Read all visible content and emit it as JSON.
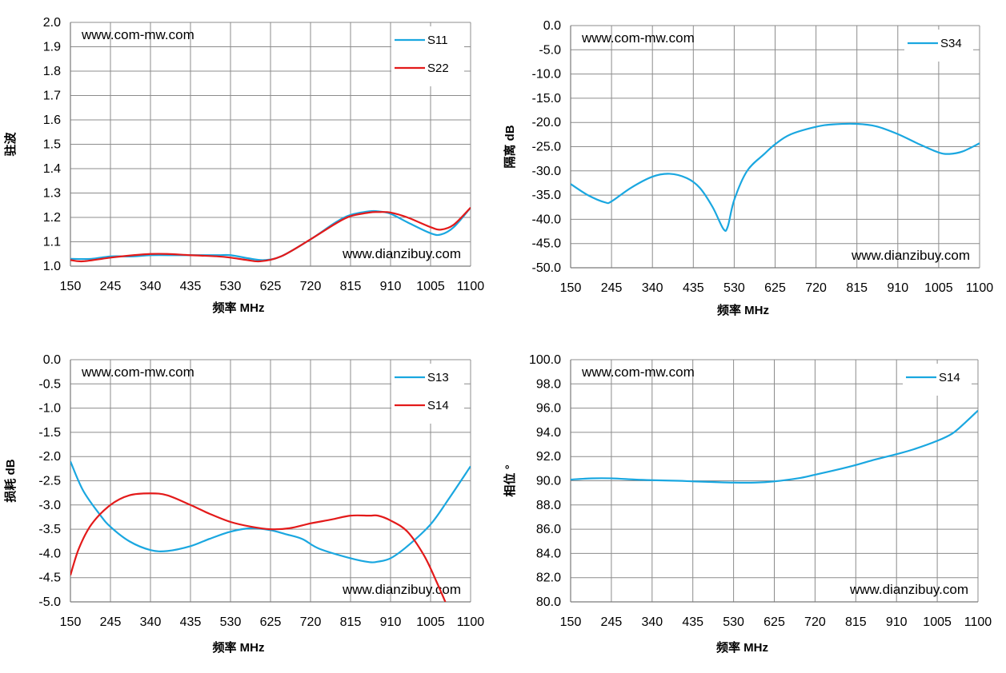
{
  "chart_data": [
    {
      "type": "line",
      "watermark_top": "www.com-mw.com",
      "watermark_bottom": "www.dianzibuy.com",
      "xlabel": "频率 MHz",
      "ylabel": "驻波",
      "xticks": [
        150,
        245,
        340,
        435,
        530,
        625,
        720,
        815,
        910,
        1005,
        1100
      ],
      "ylim": [
        1.0,
        2.0
      ],
      "ytick_step": 0.1,
      "ytick_decimals": 1,
      "grid": true,
      "legend_position": "top-right",
      "series": [
        {
          "name": "S11",
          "color": "#1aa7e0",
          "x": [
            150,
            200,
            245,
            300,
            340,
            400,
            435,
            500,
            530,
            580,
            610,
            650,
            720,
            780,
            815,
            860,
            880,
            910,
            950,
            1005,
            1030,
            1060,
            1100
          ],
          "y": [
            1.03,
            1.03,
            1.04,
            1.04,
            1.045,
            1.045,
            1.045,
            1.045,
            1.045,
            1.03,
            1.025,
            1.04,
            1.11,
            1.18,
            1.21,
            1.225,
            1.225,
            1.215,
            1.18,
            1.135,
            1.13,
            1.16,
            1.24
          ]
        },
        {
          "name": "S22",
          "color": "#e31a1a",
          "x": [
            150,
            180,
            245,
            300,
            340,
            380,
            435,
            500,
            530,
            570,
            600,
            650,
            720,
            780,
            815,
            860,
            880,
            910,
            950,
            1005,
            1030,
            1060,
            1100
          ],
          "y": [
            1.025,
            1.02,
            1.035,
            1.045,
            1.05,
            1.05,
            1.045,
            1.04,
            1.035,
            1.025,
            1.02,
            1.04,
            1.11,
            1.175,
            1.205,
            1.22,
            1.222,
            1.22,
            1.2,
            1.16,
            1.15,
            1.17,
            1.24
          ]
        }
      ]
    },
    {
      "type": "line",
      "watermark_top": "www.com-mw.com",
      "watermark_bottom": "www.dianzibuy.com",
      "xlabel": "频率 MHz",
      "ylabel": "隔离 dB",
      "xticks": [
        150,
        245,
        340,
        435,
        530,
        625,
        720,
        815,
        910,
        1005,
        1100
      ],
      "ylim": [
        -50.0,
        0.0
      ],
      "ytick_step": 5,
      "ytick_decimals": 1,
      "grid": true,
      "legend_position": "top-right",
      "series": [
        {
          "name": "S34",
          "color": "#1aa7e0",
          "x": [
            150,
            190,
            230,
            245,
            290,
            340,
            380,
            420,
            450,
            480,
            505,
            515,
            530,
            560,
            600,
            625,
            660,
            720,
            760,
            815,
            860,
            910,
            960,
            1005,
            1030,
            1060,
            1100
          ],
          "y": [
            -32.7,
            -35.0,
            -36.5,
            -36.3,
            -33.5,
            -31.2,
            -30.6,
            -31.5,
            -33.5,
            -37.5,
            -42.0,
            -41.5,
            -36.0,
            -30.0,
            -26.5,
            -24.5,
            -22.5,
            -20.9,
            -20.4,
            -20.3,
            -20.8,
            -22.4,
            -24.5,
            -26.2,
            -26.5,
            -26.0,
            -24.3
          ]
        }
      ]
    },
    {
      "type": "line",
      "watermark_top": "www.com-mw.com",
      "watermark_bottom": "www.dianzibuy.com",
      "xlabel": "频率 MHz",
      "ylabel": "损耗 dB",
      "xticks": [
        150,
        245,
        340,
        435,
        530,
        625,
        720,
        815,
        910,
        1005,
        1100
      ],
      "ylim": [
        -5.0,
        0.0
      ],
      "ytick_step": 0.5,
      "ytick_decimals": 1,
      "grid": true,
      "legend_position": "top-right",
      "series": [
        {
          "name": "S13",
          "color": "#1aa7e0",
          "x": [
            150,
            180,
            220,
            245,
            290,
            340,
            380,
            435,
            480,
            530,
            580,
            625,
            660,
            700,
            740,
            815,
            860,
            880,
            910,
            950,
            1005,
            1050,
            1100
          ],
          "y": [
            -2.1,
            -2.7,
            -3.2,
            -3.45,
            -3.75,
            -3.93,
            -3.95,
            -3.85,
            -3.7,
            -3.55,
            -3.48,
            -3.52,
            -3.6,
            -3.7,
            -3.9,
            -4.1,
            -4.18,
            -4.17,
            -4.1,
            -3.85,
            -3.4,
            -2.85,
            -2.2
          ]
        },
        {
          "name": "S14",
          "color": "#e31a1a",
          "x": [
            150,
            170,
            200,
            245,
            290,
            340,
            380,
            435,
            480,
            530,
            580,
            625,
            670,
            720,
            770,
            815,
            860,
            880,
            910,
            950,
            990,
            1020,
            1040
          ],
          "y": [
            -4.45,
            -3.9,
            -3.4,
            -3.0,
            -2.8,
            -2.76,
            -2.8,
            -3.0,
            -3.18,
            -3.35,
            -3.45,
            -3.5,
            -3.48,
            -3.38,
            -3.3,
            -3.22,
            -3.22,
            -3.22,
            -3.32,
            -3.55,
            -4.05,
            -4.6,
            -5.0
          ]
        }
      ]
    },
    {
      "type": "line",
      "watermark_top": "www.com-mw.com",
      "watermark_bottom": "www.dianzibuy.com",
      "xlabel": "频率 MHz",
      "ylabel": "相位 °",
      "xticks": [
        150,
        245,
        340,
        435,
        530,
        625,
        720,
        815,
        910,
        1005,
        1100
      ],
      "ylim": [
        80.0,
        100.0
      ],
      "ytick_step": 2,
      "ytick_decimals": 1,
      "grid": true,
      "legend_position": "top-right",
      "series": [
        {
          "name": "S14",
          "color": "#1aa7e0",
          "x": [
            150,
            200,
            245,
            300,
            340,
            400,
            435,
            480,
            530,
            580,
            625,
            680,
            720,
            770,
            815,
            860,
            910,
            950,
            1005,
            1040,
            1070,
            1100
          ],
          "y": [
            90.1,
            90.2,
            90.2,
            90.1,
            90.05,
            90.0,
            89.95,
            89.9,
            89.85,
            89.85,
            89.95,
            90.2,
            90.5,
            90.9,
            91.3,
            91.75,
            92.2,
            92.6,
            93.3,
            93.9,
            94.8,
            95.8
          ]
        }
      ]
    }
  ]
}
